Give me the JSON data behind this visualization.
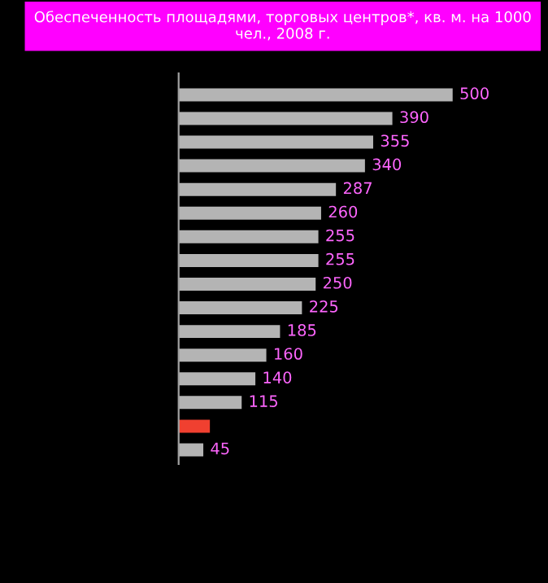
{
  "chart_data": {
    "type": "bar",
    "orientation": "horizontal",
    "title": "Обеспеченность площадями, торговых центров*, кв. м. на 1000 чел., 2008 г.",
    "categories": [
      null,
      null,
      null,
      null,
      null,
      null,
      null,
      null,
      null,
      null,
      null,
      null,
      null,
      null,
      null,
      null
    ],
    "values": [
      500,
      390,
      355,
      340,
      287,
      260,
      255,
      255,
      250,
      225,
      185,
      160,
      140,
      115,
      57,
      45
    ],
    "value_labels": [
      "500",
      "390",
      "355",
      "340",
      "287",
      "260",
      "255",
      "255",
      "250",
      "225",
      "185",
      "160",
      "140",
      "115",
      null,
      "45"
    ],
    "colors": [
      "#b4b4b4",
      "#b4b4b4",
      "#b4b4b4",
      "#b4b4b4",
      "#b4b4b4",
      "#b4b4b4",
      "#b4b4b4",
      "#b4b4b4",
      "#b4b4b4",
      "#b4b4b4",
      "#b4b4b4",
      "#b4b4b4",
      "#b4b4b4",
      "#b4b4b4",
      "#f04030",
      "#b4b4b4"
    ],
    "tick_labels": false,
    "grid": false,
    "legend": false
  }
}
